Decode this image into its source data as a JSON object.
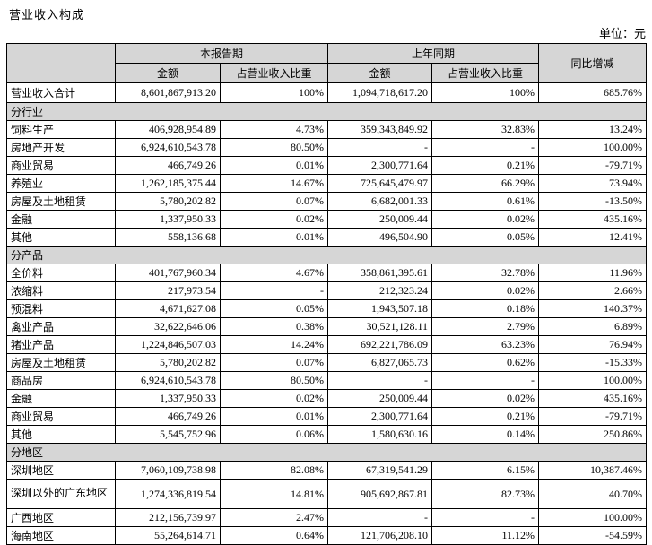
{
  "page": {
    "title": "营业收入构成",
    "unit_label": "单位：元"
  },
  "table": {
    "header": {
      "corner": "",
      "current_period": "本报告期",
      "prior_period": "上年同期",
      "yoy_change": "同比增减",
      "amount_current": "金额",
      "pct_current": "占营业收入比重",
      "amount_prior": "金额",
      "pct_prior": "占营业收入比重"
    },
    "total_row": {
      "label": "营业收入合计",
      "cells": [
        "8,601,867,913.20",
        "100%",
        "1,094,718,617.20",
        "100%",
        "685.76%"
      ]
    },
    "sections": [
      {
        "title": "分行业",
        "rows": [
          {
            "label": "饲料生产",
            "cells": [
              "406,928,954.89",
              "4.73%",
              "359,343,849.92",
              "32.83%",
              "13.24%"
            ]
          },
          {
            "label": "房地产开发",
            "cells": [
              "6,924,610,543.78",
              "80.50%",
              "-",
              "-",
              "100.00%"
            ]
          },
          {
            "label": "商业贸易",
            "cells": [
              "466,749.26",
              "0.01%",
              "2,300,771.64",
              "0.21%",
              "-79.71%"
            ]
          },
          {
            "label": "养殖业",
            "cells": [
              "1,262,185,375.44",
              "14.67%",
              "725,645,479.97",
              "66.29%",
              "73.94%"
            ]
          },
          {
            "label": "房屋及土地租赁",
            "cells": [
              "5,780,202.82",
              "0.07%",
              "6,682,001.33",
              "0.61%",
              "-13.50%"
            ]
          },
          {
            "label": "金融",
            "cells": [
              "1,337,950.33",
              "0.02%",
              "250,009.44",
              "0.02%",
              "435.16%"
            ]
          },
          {
            "label": "其他",
            "cells": [
              "558,136.68",
              "0.01%",
              "496,504.90",
              "0.05%",
              "12.41%"
            ]
          }
        ]
      },
      {
        "title": "分产品",
        "rows": [
          {
            "label": "全价料",
            "cells": [
              "401,767,960.34",
              "4.67%",
              "358,861,395.61",
              "32.78%",
              "11.96%"
            ]
          },
          {
            "label": "浓缩料",
            "cells": [
              "217,973.54",
              "-",
              "212,323.24",
              "0.02%",
              "2.66%"
            ]
          },
          {
            "label": "预混料",
            "cells": [
              "4,671,627.08",
              "0.05%",
              "1,943,507.18",
              "0.18%",
              "140.37%"
            ]
          },
          {
            "label": "禽业产品",
            "cells": [
              "32,622,646.06",
              "0.38%",
              "30,521,128.11",
              "2.79%",
              "6.89%"
            ]
          },
          {
            "label": "猪业产品",
            "cells": [
              "1,224,846,507.03",
              "14.24%",
              "692,221,786.09",
              "63.23%",
              "76.94%"
            ]
          },
          {
            "label": "房屋及土地租赁",
            "cells": [
              "5,780,202.82",
              "0.07%",
              "6,827,065.73",
              "0.62%",
              "-15.33%"
            ]
          },
          {
            "label": "商品房",
            "cells": [
              "6,924,610,543.78",
              "80.50%",
              "-",
              "-",
              "100.00%"
            ]
          },
          {
            "label": "金融",
            "cells": [
              "1,337,950.33",
              "0.02%",
              "250,009.44",
              "0.02%",
              "435.16%"
            ]
          },
          {
            "label": "商业贸易",
            "cells": [
              "466,749.26",
              "0.01%",
              "2,300,771.64",
              "0.21%",
              "-79.71%"
            ]
          },
          {
            "label": "其他",
            "cells": [
              "5,545,752.96",
              "0.06%",
              "1,580,630.16",
              "0.14%",
              "250.86%"
            ]
          }
        ]
      },
      {
        "title": "分地区",
        "rows": [
          {
            "label": "深圳地区",
            "cells": [
              "7,060,109,738.98",
              "82.08%",
              "67,319,541.29",
              "6.15%",
              "10,387.46%"
            ]
          },
          {
            "label": "深圳以外的广东地区",
            "cells": [
              "1,274,336,819.54",
              "14.81%",
              "905,692,867.81",
              "82.73%",
              "40.70%"
            ]
          },
          {
            "label": "广西地区",
            "cells": [
              "212,156,739.97",
              "2.47%",
              "-",
              "-",
              "100.00%"
            ]
          },
          {
            "label": "海南地区",
            "cells": [
              "55,264,614.71",
              "0.64%",
              "121,706,208.10",
              "11.12%",
              "-54.59%"
            ]
          }
        ]
      }
    ]
  }
}
